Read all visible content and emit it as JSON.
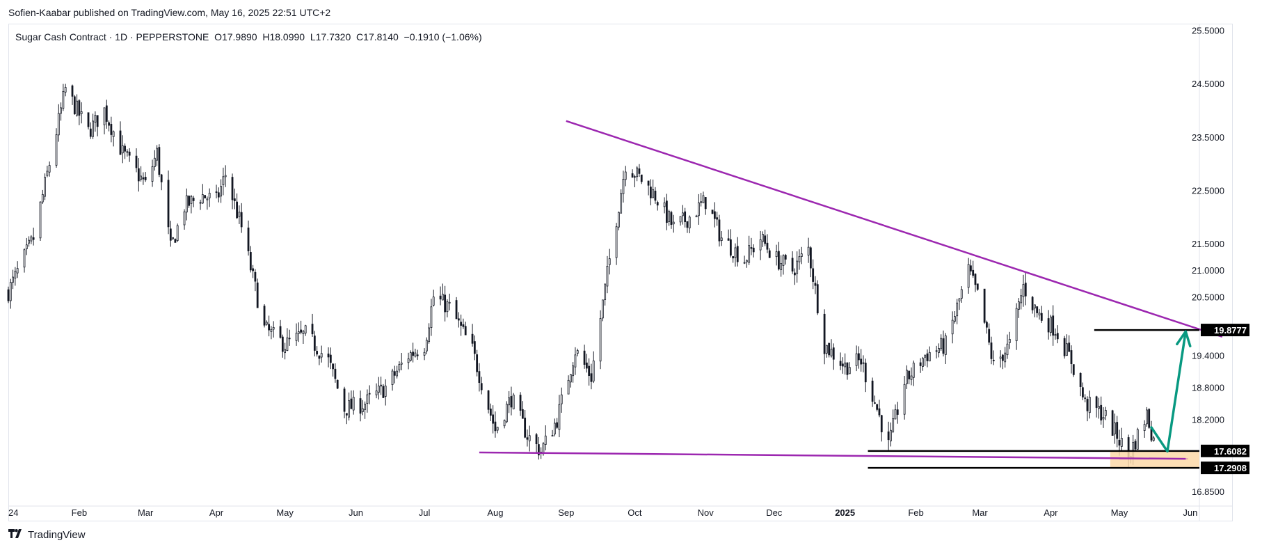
{
  "header": {
    "published": "Sofien-Kaabar published on TradingView.com, May 16, 2025 22:51 UTC+2"
  },
  "legend": {
    "symbol": "Sugar Cash Contract · 1D · PEPPERSTONE",
    "open": "O17.9890",
    "high": "H18.0990",
    "low": "L17.7320",
    "close": "C17.8140",
    "change": "−0.1910 (−1.06%)"
  },
  "footer": {
    "brand": "TradingView",
    "logo_icon": "tradingview-logo-icon"
  },
  "colors": {
    "candle": "#131722",
    "trendline": "#9c27b0",
    "arrow": "#089981",
    "zone": "#fbd8a8",
    "level": "#000000"
  },
  "chart_data": {
    "type": "candlestick",
    "title": "Sugar Cash Contract · 1D · PEPPERSTONE",
    "x_range": [
      "2024-01-01",
      "2025-06-05"
    ],
    "y_range": [
      16.6,
      25.6
    ],
    "y_ticks": [
      {
        "value": 25.5,
        "label": "25.5000"
      },
      {
        "value": 24.5,
        "label": "24.5000"
      },
      {
        "value": 23.5,
        "label": "23.5000"
      },
      {
        "value": 22.5,
        "label": "22.5000"
      },
      {
        "value": 21.5,
        "label": "21.5000"
      },
      {
        "value": 21.0,
        "label": "21.0000"
      },
      {
        "value": 20.5,
        "label": "20.5000"
      },
      {
        "value": 19.4,
        "label": "19.4000"
      },
      {
        "value": 18.8,
        "label": "18.8000"
      },
      {
        "value": 18.2,
        "label": "18.2000"
      },
      {
        "value": 16.85,
        "label": "16.8500"
      }
    ],
    "x_ticks": [
      {
        "date": "2024-01-01",
        "label": "24",
        "bold": false
      },
      {
        "date": "2024-02-01",
        "label": "Feb",
        "bold": false
      },
      {
        "date": "2024-03-01",
        "label": "Mar",
        "bold": false
      },
      {
        "date": "2024-04-01",
        "label": "Apr",
        "bold": false
      },
      {
        "date": "2024-05-01",
        "label": "May",
        "bold": false
      },
      {
        "date": "2024-06-01",
        "label": "Jun",
        "bold": false
      },
      {
        "date": "2024-07-01",
        "label": "Jul",
        "bold": false
      },
      {
        "date": "2024-08-01",
        "label": "Aug",
        "bold": false
      },
      {
        "date": "2024-09-01",
        "label": "Sep",
        "bold": false
      },
      {
        "date": "2024-10-01",
        "label": "Oct",
        "bold": false
      },
      {
        "date": "2024-11-01",
        "label": "Nov",
        "bold": false
      },
      {
        "date": "2024-12-01",
        "label": "Dec",
        "bold": false
      },
      {
        "date": "2025-01-01",
        "label": "2025",
        "bold": true
      },
      {
        "date": "2025-02-01",
        "label": "Feb",
        "bold": false
      },
      {
        "date": "2025-03-01",
        "label": "Mar",
        "bold": false
      },
      {
        "date": "2025-04-01",
        "label": "Apr",
        "bold": false
      },
      {
        "date": "2025-05-01",
        "label": "May",
        "bold": false
      },
      {
        "date": "2025-06-01",
        "label": "Jun",
        "bold": false
      }
    ],
    "price_path_closes": [
      [
        "2024-01-01",
        20.6
      ],
      [
        "2024-01-12",
        21.6
      ],
      [
        "2024-01-22",
        23.6
      ],
      [
        "2024-01-26",
        24.4
      ],
      [
        "2024-02-05",
        23.6
      ],
      [
        "2024-02-12",
        24.0
      ],
      [
        "2024-02-20",
        23.2
      ],
      [
        "2024-03-01",
        22.6
      ],
      [
        "2024-03-06",
        23.2
      ],
      [
        "2024-03-12",
        21.4
      ],
      [
        "2024-03-18",
        22.2
      ],
      [
        "2024-03-26",
        22.4
      ],
      [
        "2024-04-01",
        22.3
      ],
      [
        "2024-04-05",
        22.8
      ],
      [
        "2024-04-12",
        21.8
      ],
      [
        "2024-04-22",
        19.9
      ],
      [
        "2024-05-01",
        19.6
      ],
      [
        "2024-05-10",
        19.8
      ],
      [
        "2024-05-20",
        19.3
      ],
      [
        "2024-05-27",
        18.4
      ],
      [
        "2024-06-05",
        18.5
      ],
      [
        "2024-06-14",
        18.8
      ],
      [
        "2024-06-24",
        19.4
      ],
      [
        "2024-07-01",
        19.6
      ],
      [
        "2024-07-05",
        20.5
      ],
      [
        "2024-07-12",
        20.3
      ],
      [
        "2024-07-22",
        19.5
      ],
      [
        "2024-08-01",
        18.0
      ],
      [
        "2024-08-08",
        18.6
      ],
      [
        "2024-08-15",
        17.9
      ],
      [
        "2024-08-21",
        17.6
      ],
      [
        "2024-08-28",
        18.2
      ],
      [
        "2024-09-05",
        19.5
      ],
      [
        "2024-09-12",
        19.0
      ],
      [
        "2024-09-20",
        21.2
      ],
      [
        "2024-09-27",
        23.0
      ],
      [
        "2024-10-04",
        22.7
      ],
      [
        "2024-10-10",
        22.4
      ],
      [
        "2024-10-18",
        21.8
      ],
      [
        "2024-10-25",
        22.0
      ],
      [
        "2024-11-01",
        22.3
      ],
      [
        "2024-11-08",
        21.6
      ],
      [
        "2024-11-18",
        21.2
      ],
      [
        "2024-11-25",
        21.6
      ],
      [
        "2024-12-02",
        21.2
      ],
      [
        "2024-12-09",
        21.0
      ],
      [
        "2024-12-16",
        21.4
      ],
      [
        "2024-12-23",
        19.6
      ],
      [
        "2025-01-01",
        19.2
      ],
      [
        "2025-01-08",
        19.3
      ],
      [
        "2025-01-15",
        18.4
      ],
      [
        "2025-01-20",
        17.7
      ],
      [
        "2025-01-27",
        18.9
      ],
      [
        "2025-02-05",
        19.4
      ],
      [
        "2025-02-14",
        19.6
      ],
      [
        "2025-02-24",
        21.0
      ],
      [
        "2025-03-01",
        20.4
      ],
      [
        "2025-03-07",
        19.2
      ],
      [
        "2025-03-14",
        19.6
      ],
      [
        "2025-03-20",
        20.7
      ],
      [
        "2025-03-26",
        20.2
      ],
      [
        "2025-04-03",
        19.9
      ],
      [
        "2025-04-10",
        19.3
      ],
      [
        "2025-04-16",
        18.5
      ],
      [
        "2025-04-24",
        18.3
      ],
      [
        "2025-04-30",
        17.9
      ],
      [
        "2025-05-05",
        17.5
      ],
      [
        "2025-05-09",
        17.9
      ],
      [
        "2025-05-13",
        18.3
      ],
      [
        "2025-05-16",
        17.81
      ]
    ],
    "trendlines": [
      {
        "name": "",
        "color": "#9c27b0",
        "from": [
          "2024-09-01",
          23.8
        ],
        "to": [
          "2025-06-15",
          19.75
        ]
      },
      {
        "name": "",
        "color": "#9c27b0",
        "from": [
          "2024-07-25",
          17.58
        ],
        "to": [
          "2025-05-30",
          17.46
        ]
      }
    ],
    "horizontal_levels": [
      {
        "value": 19.8777,
        "label": "19.8777",
        "from": "2025-04-20",
        "to": "2025-06-05"
      },
      {
        "value": 17.6082,
        "label": "17.6082",
        "from": "2025-01-11",
        "to": "2025-06-05"
      },
      {
        "value": 17.2908,
        "label": "17.2908",
        "from": "2025-01-11",
        "to": "2025-06-05"
      }
    ],
    "zone": {
      "from": "2025-04-27",
      "to": "2025-06-05",
      "low": 17.2908,
      "high": 17.6082
    },
    "zone_midline": {
      "value": 17.46,
      "from": "2025-05-01",
      "to": "2025-05-31"
    },
    "projection_arrow": [
      [
        "2025-05-15",
        18.05
      ],
      [
        "2025-05-22",
        17.6
      ],
      [
        "2025-05-30",
        19.85
      ]
    ]
  }
}
